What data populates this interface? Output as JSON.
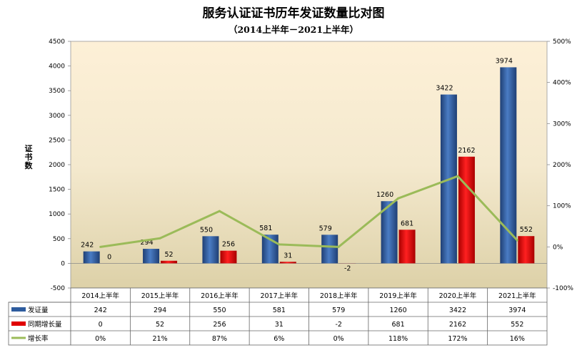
{
  "chart_data": {
    "type": "bar",
    "title": "服务认证证书历年发证数量比对图",
    "subtitle": "（2014上半年－2021上半年）",
    "ylabel": "证书数",
    "ylim": [
      -500,
      4500
    ],
    "yticks": [
      -500,
      0,
      500,
      1000,
      1500,
      2000,
      2500,
      3000,
      3500,
      4000,
      4500
    ],
    "y2lim": [
      -100,
      500
    ],
    "y2ticks": [
      "-100%",
      "0%",
      "100%",
      "200%",
      "300%",
      "400%",
      "500%"
    ],
    "y2tickvals": [
      -100,
      0,
      100,
      200,
      300,
      400,
      500
    ],
    "categories": [
      "2014上半年",
      "2015上半年",
      "2016上半年",
      "2017上半年",
      "2018上半年",
      "2019上半年",
      "2020上半年",
      "2021上半年"
    ],
    "series": [
      {
        "name": "发证量",
        "kind": "bar",
        "color": "#2E5C9E",
        "values": [
          242,
          294,
          550,
          581,
          579,
          1260,
          3422,
          3974
        ],
        "labels": [
          "242",
          "294",
          "550",
          "581",
          "579",
          "1260",
          "3422",
          "3974"
        ]
      },
      {
        "name": "同期增长量",
        "kind": "bar",
        "color": "#E00000",
        "values": [
          0,
          52,
          256,
          31,
          -2,
          681,
          2162,
          552
        ],
        "labels": [
          "0",
          "52",
          "256",
          "31",
          "-2",
          "681",
          "2162",
          "552"
        ]
      },
      {
        "name": "增长率",
        "kind": "line",
        "axis": "right",
        "color": "#9BBB59",
        "values": [
          0,
          21,
          87,
          6,
          0,
          118,
          172,
          16
        ],
        "labels": [
          "0%",
          "21%",
          "87%",
          "6%",
          "0%",
          "118%",
          "172%",
          "16%"
        ]
      }
    ],
    "legend": "data-table-bottom"
  }
}
